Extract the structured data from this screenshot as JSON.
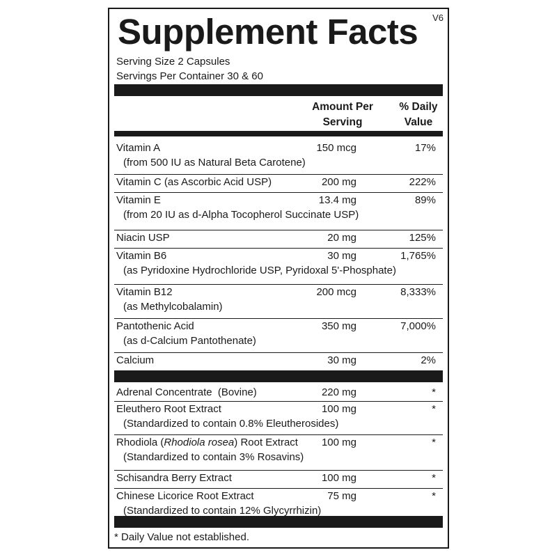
{
  "title": "Supplement Facts",
  "version": "V6",
  "serving_size": "Serving Size 2 Capsules",
  "servings_per_container": "Servings Per Container 30 & 60",
  "header": {
    "amount_line1": "Amount Per",
    "amount_line2": "Serving",
    "dv_line1": "% Daily",
    "dv_line2": "Value"
  },
  "vitamins": [
    {
      "name": "Vitamin A",
      "amount": "150 mcg",
      "dv": "17%",
      "sub": "(from 500 IU as Natural Beta Carotene)"
    },
    {
      "name": "Vitamin C (as Ascorbic Acid USP)",
      "amount": "200 mg",
      "dv": "222%",
      "sub": ""
    },
    {
      "name": "Vitamin E",
      "amount": "13.4 mg",
      "dv": "89%",
      "sub": "(from 20 IU as d-Alpha Tocopherol Succinate USP)"
    },
    {
      "name": "Niacin USP",
      "amount": "20 mg",
      "dv": "125%",
      "sub": ""
    },
    {
      "name": "Vitamin B6",
      "amount": "30 mg",
      "dv": "1,765%",
      "sub": "(as Pyridoxine Hydrochloride USP, Pyridoxal 5'-Phosphate)"
    },
    {
      "name": "Vitamin B12",
      "amount": "200 mcg",
      "dv": "8,333%",
      "sub": "(as Methylcobalamin)"
    },
    {
      "name": "Pantothenic Acid",
      "amount": "350 mg",
      "dv": "7,000%",
      "sub": "(as d-Calcium Pantothenate)"
    },
    {
      "name": "Calcium",
      "amount": "30 mg",
      "dv": "2%",
      "sub": ""
    }
  ],
  "botanicals": [
    {
      "name": "Adrenal Concentrate  (Bovine)",
      "amount": "220 mg",
      "dv": "*",
      "sub": ""
    },
    {
      "name": "Eleuthero Root Extract",
      "amount": "100 mg",
      "dv": "*",
      "sub": "(Standardized to contain 0.8% Eleutherosides)"
    },
    {
      "name_prefix": "Rhodiola (",
      "name_italic": "Rhodiola rosea",
      "name_suffix": ") Root Extract",
      "amount": "100 mg",
      "dv": "*",
      "sub": "(Standardized to contain 3% Rosavins)"
    },
    {
      "name": "Schisandra Berry Extract",
      "amount": "100 mg",
      "dv": "*",
      "sub": ""
    },
    {
      "name": "Chinese Licorice Root Extract",
      "amount": "75 mg",
      "dv": "*",
      "sub": "(Standardized to contain 12% Glycyrrhizin)"
    }
  ],
  "footnote": "* Daily Value not established."
}
